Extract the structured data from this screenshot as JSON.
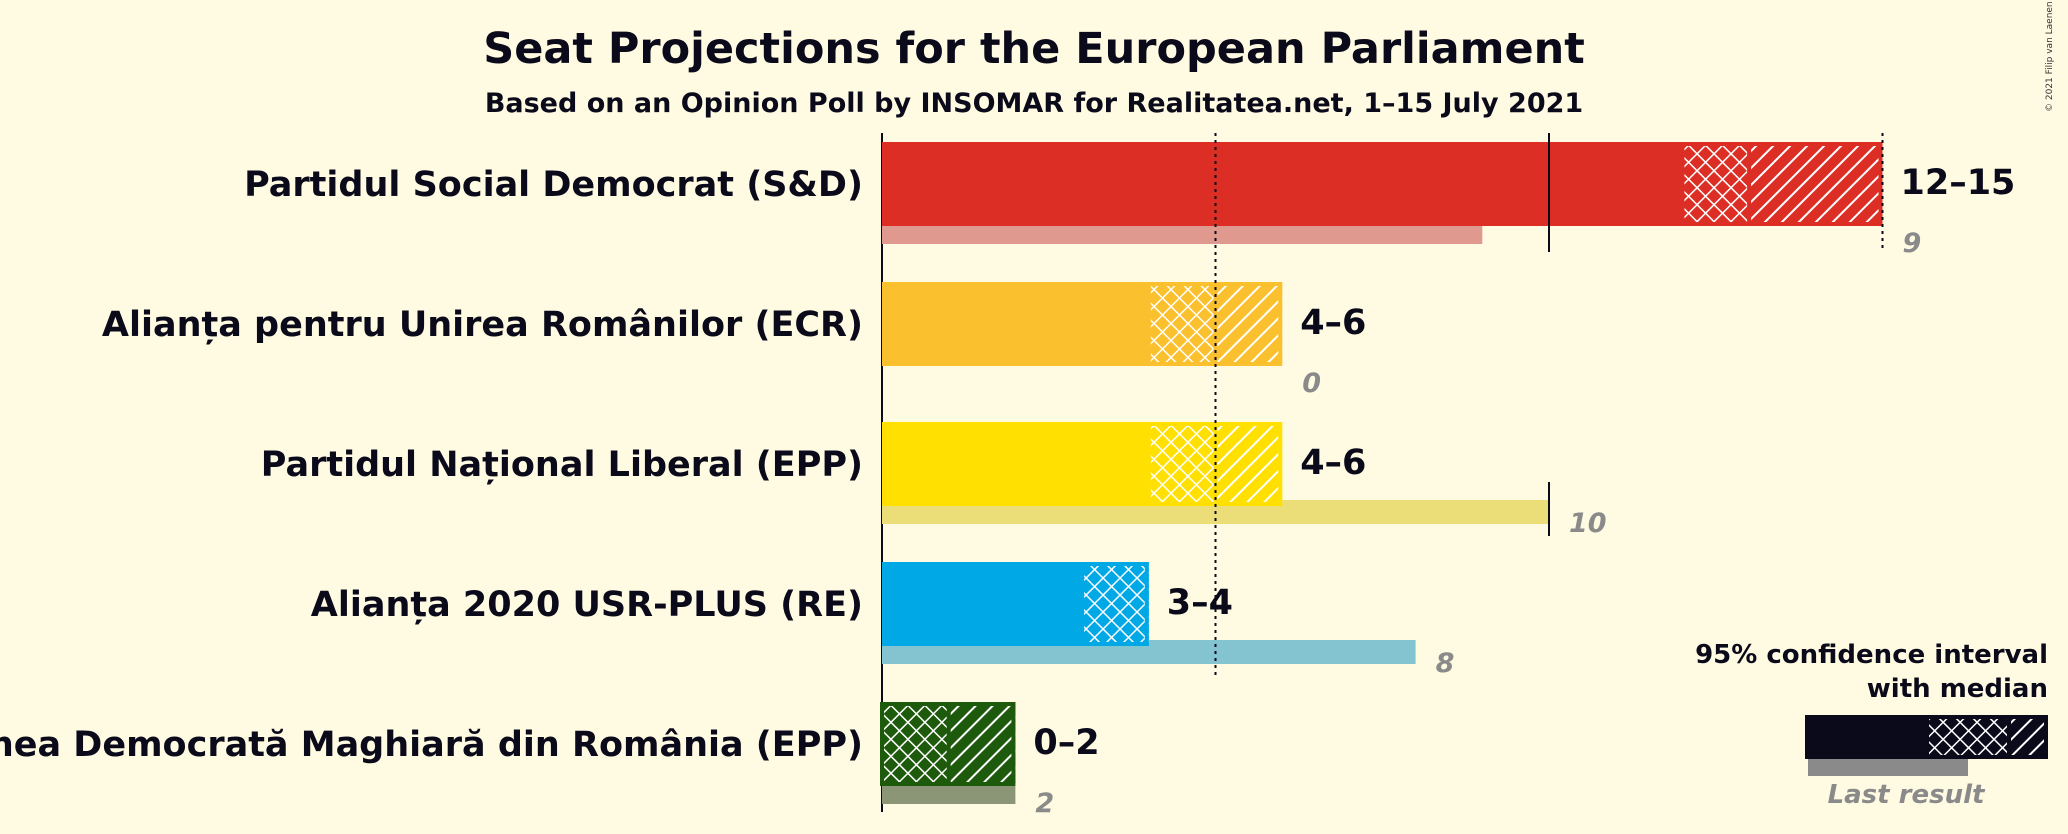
{
  "title": "Seat Projections for the European Parliament",
  "subtitle": "Based on an Opinion Poll by INSOMAR for Realitatea.net, 1–15 July 2021",
  "copyright": "© 2021 Filip van Laenen",
  "legend": {
    "line1": "95% confidence interval",
    "line2": "with median",
    "last_result": "Last result"
  },
  "chart_data": {
    "type": "bar",
    "title": "Seat Projections for the European Parliament",
    "subtitle": "Based on an Opinion Poll by INSOMAR for Realitatea.net, 1–15 July 2021",
    "xlim": [
      0,
      15
    ],
    "gridlines": [
      5,
      10,
      15
    ],
    "parties": [
      {
        "name": "Partidul Social Democrat (S&D)",
        "low": 12,
        "median": 13,
        "high": 15,
        "range_label": "12–15",
        "last": 9,
        "last_label": "9",
        "color": "#dc2e25",
        "last_color": "#e0998e"
      },
      {
        "name": "Alianța pentru Unirea Românilor (ECR)",
        "low": 4,
        "median": 5,
        "high": 6,
        "range_label": "4–6",
        "last": 0,
        "last_label": "0",
        "color": "#fbc02d",
        "last_color": "#f0d078"
      },
      {
        "name": "Partidul Național Liberal (EPP)",
        "low": 4,
        "median": 5,
        "high": 6,
        "range_label": "4–6",
        "last": 10,
        "last_label": "10",
        "color": "#ffe000",
        "last_color": "#ebdd78"
      },
      {
        "name": "Alianța 2020 USR-PLUS (RE)",
        "low": 3,
        "median": 4,
        "high": 4,
        "range_label": "3–4",
        "last": 8,
        "last_label": "8",
        "color": "#00a8e6",
        "last_color": "#84c4d0"
      },
      {
        "name": "Uniunea Democrată Maghiară din România (EPP)",
        "low": 0,
        "median": 1,
        "high": 2,
        "range_label": "0–2",
        "last": 2,
        "last_label": "2",
        "color": "#1e5a0c",
        "last_color": "#8a9676"
      }
    ]
  }
}
